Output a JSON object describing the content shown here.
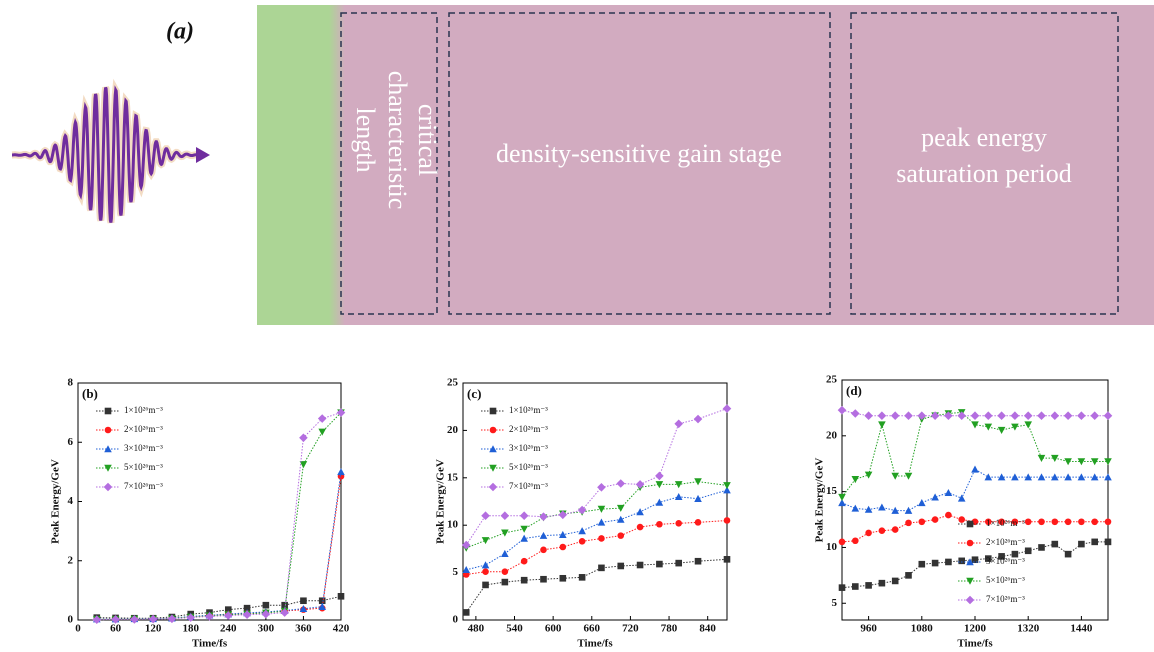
{
  "panel_a": {
    "label": "(a)",
    "stage_1": [
      "critical",
      "characteristic",
      "length"
    ],
    "stage_2": "density-sensitive gain stage",
    "stage_3": [
      "peak energy",
      "saturation period"
    ]
  },
  "chart_data": [
    {
      "type": "line",
      "title": "(b)",
      "x_label": "Time/fs",
      "y_label": "Peak Energy/GeV",
      "xlim": [
        0,
        420
      ],
      "xticks": [
        0,
        60,
        120,
        180,
        240,
        300,
        360,
        420
      ],
      "ylim": [
        0,
        8
      ],
      "yticks": [
        0,
        2,
        4,
        6,
        8
      ],
      "legend": "upper left",
      "x": [
        30,
        60,
        90,
        120,
        150,
        180,
        210,
        240,
        270,
        300,
        330,
        360,
        390,
        420
      ],
      "series": [
        {
          "name": "1×10²⁶m⁻³",
          "color": "#333333",
          "marker": "square",
          "values": [
            0.08,
            0.07,
            0.06,
            0.06,
            0.1,
            0.2,
            0.25,
            0.35,
            0.4,
            0.5,
            0.5,
            0.65,
            0.65,
            0.8
          ]
        },
        {
          "name": "2×10²⁶m⁻³",
          "color": "#ff1a1a",
          "marker": "circle",
          "values": [
            0.02,
            0.03,
            0.03,
            0.04,
            0.05,
            0.1,
            0.15,
            0.2,
            0.22,
            0.25,
            0.3,
            0.35,
            0.4,
            4.85
          ]
        },
        {
          "name": "3×10²⁶m⁻³",
          "color": "#1f5fd6",
          "marker": "triangle-up",
          "values": [
            0.03,
            0.03,
            0.04,
            0.04,
            0.06,
            0.12,
            0.16,
            0.2,
            0.24,
            0.27,
            0.32,
            0.38,
            0.45,
            5.0
          ]
        },
        {
          "name": "5×10²⁶m⁻³",
          "color": "#22a022",
          "marker": "triangle-down",
          "values": [
            0.02,
            0.02,
            0.03,
            0.03,
            0.05,
            0.1,
            0.14,
            0.18,
            0.2,
            0.24,
            0.3,
            5.25,
            6.35,
            7.0
          ]
        },
        {
          "name": "7×10²⁶m⁻³",
          "color": "#b46ee0",
          "marker": "diamond",
          "values": [
            0.01,
            0.02,
            0.02,
            0.03,
            0.04,
            0.08,
            0.12,
            0.15,
            0.18,
            0.2,
            0.25,
            6.15,
            6.8,
            7.0
          ]
        }
      ]
    },
    {
      "type": "line",
      "title": "(c)",
      "x_label": "Time/fs",
      "y_label": "Peak Energy/GeV",
      "xlim": [
        460,
        870
      ],
      "xticks": [
        480,
        540,
        600,
        660,
        720,
        780,
        840
      ],
      "ylim": [
        0,
        25
      ],
      "yticks": [
        0,
        5,
        10,
        15,
        20,
        25
      ],
      "legend": "upper left",
      "x": [
        465,
        495,
        525,
        555,
        585,
        615,
        645,
        675,
        705,
        735,
        765,
        795,
        825,
        870
      ],
      "series": [
        {
          "name": "1×10²⁶m⁻³",
          "color": "#333333",
          "marker": "square",
          "values": [
            0.8,
            3.7,
            4.0,
            4.2,
            4.3,
            4.4,
            4.5,
            5.5,
            5.7,
            5.8,
            5.9,
            6.0,
            6.2,
            6.4
          ]
        },
        {
          "name": "2×10²⁶m⁻³",
          "color": "#ff1a1a",
          "marker": "circle",
          "values": [
            4.8,
            5.1,
            5.1,
            6.2,
            7.4,
            7.7,
            8.3,
            8.6,
            8.9,
            9.8,
            10.1,
            10.2,
            10.3,
            10.5
          ]
        },
        {
          "name": "3×10²⁶m⁻³",
          "color": "#1f5fd6",
          "marker": "triangle-up",
          "values": [
            5.3,
            5.8,
            7.0,
            8.6,
            8.9,
            9.0,
            9.4,
            10.3,
            10.6,
            11.4,
            12.4,
            13.0,
            12.8,
            13.7
          ]
        },
        {
          "name": "5×10²⁶m⁻³",
          "color": "#22a022",
          "marker": "triangle-down",
          "values": [
            7.6,
            8.4,
            9.2,
            9.6,
            10.8,
            11.2,
            11.4,
            11.7,
            11.8,
            14.0,
            14.3,
            14.3,
            14.6,
            14.2
          ]
        },
        {
          "name": "7×10²⁶m⁻³",
          "color": "#b46ee0",
          "marker": "diamond",
          "values": [
            7.9,
            11.0,
            11.0,
            11.0,
            10.9,
            11.1,
            11.6,
            14.0,
            14.4,
            14.3,
            15.2,
            20.7,
            21.2,
            22.3
          ]
        }
      ]
    },
    {
      "type": "line",
      "title": "(d)",
      "x_label": "Time/fs",
      "y_label": "Peak Energy/GeV",
      "xlim": [
        900,
        1500
      ],
      "xticks": [
        960,
        1080,
        1200,
        1320,
        1440
      ],
      "ylim": [
        3.5,
        25
      ],
      "yticks": [
        5,
        10,
        15,
        20,
        25
      ],
      "legend": "lower right",
      "x": [
        900,
        930,
        960,
        990,
        1020,
        1050,
        1080,
        1110,
        1140,
        1170,
        1200,
        1230,
        1260,
        1290,
        1320,
        1350,
        1380,
        1410,
        1440,
        1470,
        1500
      ],
      "series": [
        {
          "name": "1×10²⁶m⁻³",
          "color": "#333333",
          "marker": "square",
          "values": [
            6.4,
            6.5,
            6.6,
            6.8,
            7.0,
            7.5,
            8.5,
            8.6,
            8.7,
            8.8,
            8.9,
            9.0,
            9.2,
            9.4,
            9.7,
            10.0,
            10.3,
            9.4,
            10.3,
            10.5,
            10.5
          ]
        },
        {
          "name": "2×10²⁶m⁻³",
          "color": "#ff1a1a",
          "marker": "circle",
          "values": [
            10.5,
            10.6,
            11.3,
            11.5,
            11.6,
            12.2,
            12.3,
            12.5,
            12.9,
            12.5,
            12.3,
            12.3,
            12.3,
            12.3,
            12.3,
            12.3,
            12.3,
            12.3,
            12.3,
            12.3,
            12.3
          ]
        },
        {
          "name": "3×10²⁶m⁻³",
          "color": "#1f5fd6",
          "marker": "triangle-up",
          "values": [
            14.0,
            13.5,
            13.4,
            13.6,
            13.3,
            13.3,
            14.0,
            14.5,
            14.9,
            14.4,
            17.0,
            16.3,
            16.3,
            16.3,
            16.3,
            16.3,
            16.3,
            16.3,
            16.3,
            16.3,
            16.3
          ]
        },
        {
          "name": "5×10²⁶m⁻³",
          "color": "#22a022",
          "marker": "triangle-down",
          "values": [
            14.5,
            16.1,
            16.5,
            21.0,
            16.4,
            16.4,
            21.5,
            21.8,
            22.0,
            22.1,
            21.0,
            20.8,
            20.5,
            20.8,
            21.0,
            18.0,
            18.0,
            17.7,
            17.7,
            17.7,
            17.7
          ]
        },
        {
          "name": "7×10²⁶m⁻³",
          "color": "#b46ee0",
          "marker": "diamond",
          "values": [
            22.3,
            22.0,
            21.8,
            21.8,
            21.8,
            21.8,
            21.8,
            21.8,
            21.8,
            21.8,
            21.8,
            21.8,
            21.8,
            21.8,
            21.8,
            21.8,
            21.8,
            21.8,
            21.8,
            21.8,
            21.8
          ]
        }
      ]
    }
  ]
}
